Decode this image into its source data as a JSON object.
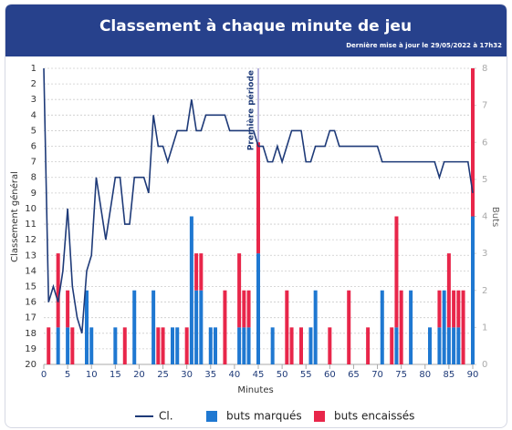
{
  "chart_data": {
    "type": "combo",
    "title": "Classement à chaque minute de jeu",
    "subtitle": "Dernière mise à jour le 29/05/2022 à 17h32",
    "xlabel": "Minutes",
    "ylabel": "Classement général",
    "y2label": "Buts",
    "annotation": {
      "text": "Première période",
      "x": 45
    },
    "x": [
      0,
      1,
      2,
      3,
      4,
      5,
      6,
      7,
      8,
      9,
      10,
      11,
      12,
      13,
      14,
      15,
      16,
      17,
      18,
      19,
      20,
      21,
      22,
      23,
      24,
      25,
      26,
      27,
      28,
      29,
      30,
      31,
      32,
      33,
      34,
      35,
      36,
      37,
      38,
      39,
      40,
      41,
      42,
      43,
      44,
      45,
      46,
      47,
      48,
      49,
      50,
      51,
      52,
      53,
      54,
      55,
      56,
      57,
      58,
      59,
      60,
      61,
      62,
      63,
      64,
      65,
      66,
      67,
      68,
      69,
      70,
      71,
      72,
      73,
      74,
      75,
      76,
      77,
      78,
      79,
      80,
      81,
      82,
      83,
      84,
      85,
      86,
      87,
      88,
      89,
      90
    ],
    "stacked": true,
    "series": [
      {
        "name": "Cl.",
        "type": "line",
        "axis": "y",
        "color": "#1e3a78",
        "values": [
          1,
          16,
          15,
          16,
          14,
          10,
          15,
          17,
          18,
          14,
          13,
          8,
          10,
          12,
          10,
          8,
          8,
          11,
          11,
          8,
          8,
          8,
          9,
          4,
          6,
          6,
          7,
          6,
          5,
          5,
          5,
          3,
          5,
          5,
          4,
          4,
          4,
          4,
          4,
          5,
          5,
          5,
          5,
          5,
          5,
          6,
          6,
          7,
          7,
          6,
          7,
          6,
          5,
          5,
          5,
          7,
          7,
          6,
          6,
          6,
          5,
          5,
          6,
          6,
          6,
          6,
          6,
          6,
          6,
          6,
          6,
          7,
          7,
          7,
          7,
          7,
          7,
          7,
          7,
          7,
          7,
          7,
          7,
          8,
          7,
          7,
          7,
          7,
          7,
          7,
          9
        ]
      },
      {
        "name": "buts marqués",
        "type": "bar",
        "axis": "y2",
        "color": "#1f78d1",
        "values": [
          0,
          0,
          0,
          1,
          0,
          1,
          0,
          0,
          0,
          2,
          1,
          0,
          0,
          0,
          0,
          1,
          0,
          0,
          0,
          2,
          0,
          0,
          0,
          2,
          0,
          0,
          0,
          1,
          1,
          0,
          0,
          4,
          2,
          2,
          0,
          1,
          1,
          0,
          0,
          0,
          0,
          1,
          1,
          1,
          0,
          3,
          0,
          0,
          1,
          0,
          0,
          0,
          0,
          0,
          0,
          0,
          1,
          2,
          0,
          0,
          0,
          0,
          0,
          0,
          0,
          0,
          0,
          0,
          0,
          0,
          0,
          2,
          0,
          0,
          1,
          0,
          0,
          2,
          0,
          0,
          0,
          1,
          0,
          1,
          2,
          1,
          1,
          1,
          0,
          0,
          4
        ]
      },
      {
        "name": "buts encaissés",
        "type": "bar",
        "axis": "y2",
        "color": "#e8264a",
        "values": [
          0,
          1,
          0,
          2,
          0,
          1,
          1,
          0,
          0,
          0,
          0,
          0,
          0,
          0,
          0,
          0,
          0,
          1,
          0,
          0,
          0,
          0,
          0,
          0,
          1,
          1,
          0,
          0,
          0,
          0,
          1,
          0,
          1,
          1,
          0,
          0,
          0,
          0,
          2,
          0,
          0,
          2,
          1,
          1,
          0,
          3,
          0,
          0,
          0,
          0,
          0,
          2,
          1,
          0,
          1,
          0,
          0,
          0,
          0,
          0,
          1,
          0,
          0,
          0,
          2,
          0,
          0,
          0,
          1,
          0,
          0,
          0,
          0,
          1,
          3,
          2,
          0,
          0,
          0,
          0,
          0,
          0,
          0,
          1,
          0,
          2,
          1,
          1,
          2,
          0,
          4
        ]
      }
    ],
    "xlim": [
      0,
      90
    ],
    "xticks": [
      0,
      5,
      10,
      15,
      20,
      25,
      30,
      35,
      40,
      45,
      50,
      55,
      60,
      65,
      70,
      75,
      80,
      85,
      90
    ],
    "ylim": [
      20,
      1
    ],
    "yticks": [
      1,
      2,
      3,
      4,
      5,
      6,
      7,
      8,
      9,
      10,
      11,
      12,
      13,
      14,
      15,
      16,
      17,
      18,
      19,
      20
    ],
    "y2lim": [
      0,
      8
    ],
    "y2ticks": [
      0,
      1,
      2,
      3,
      4,
      5,
      6,
      7,
      8
    ],
    "grid": true,
    "legend": "bottom"
  }
}
